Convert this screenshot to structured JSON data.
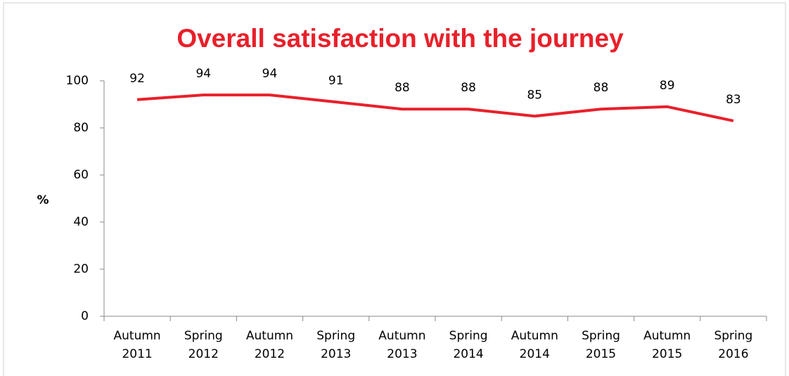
{
  "chart_data": {
    "type": "line",
    "title": "Overall satisfaction with the journey",
    "y_label": "%",
    "categories": [
      "Autumn 2011",
      "Spring 2012",
      "Autumn 2012",
      "Spring 2013",
      "Autumn 2013",
      "Spring 2014",
      "Autumn 2014",
      "Spring 2015",
      "Autumn 2015",
      "Spring 2016"
    ],
    "series": [
      {
        "name": "Overall satisfaction",
        "color": "#e8202a",
        "values": [
          92,
          94,
          94,
          91,
          88,
          88,
          85,
          88,
          89,
          83
        ]
      }
    ],
    "ylim": [
      0,
      100
    ],
    "yticks": [
      0,
      20,
      40,
      60,
      80,
      100
    ],
    "grid": false,
    "data_labels": true
  }
}
